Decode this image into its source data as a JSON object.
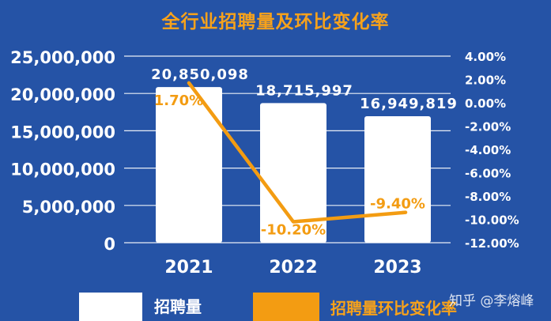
{
  "title": "全行业招聘量及环比变化率",
  "chart_data": {
    "type": "bar+line",
    "categories": [
      "2021",
      "2022",
      "2023"
    ],
    "bar_series": {
      "name": "招聘量",
      "values": [
        20850098,
        18715997,
        16949819
      ],
      "labels": [
        "20,850,098",
        "18,715,997",
        "16,949,819"
      ]
    },
    "line_series": {
      "name": "招聘量环比变化率",
      "values": [
        1.7,
        -10.2,
        -9.4
      ],
      "labels": [
        "1.70%",
        "-10.20%",
        "-9.40%"
      ]
    },
    "left_axis": {
      "ylim": [
        0,
        25000000
      ],
      "ticks": [
        0,
        5000000,
        10000000,
        15000000,
        20000000,
        25000000
      ],
      "tick_labels": [
        "0",
        "5,000,000",
        "10,000,000",
        "15,000,000",
        "20,000,000",
        "25,000,000"
      ]
    },
    "right_axis": {
      "ylim": [
        -12,
        4
      ],
      "ticks": [
        4,
        2,
        0,
        -2,
        -4,
        -6,
        -8,
        -10,
        -12
      ],
      "tick_labels": [
        "4.00%",
        "2.00%",
        "0.00%",
        "-2.00%",
        "-4.00%",
        "-6.00%",
        "-8.00%",
        "-10.00%",
        "-12.00%"
      ]
    },
    "legend": [
      "招聘量",
      "招聘量环比变化率"
    ],
    "legend_position": "bottom",
    "grid": true
  },
  "colors": {
    "background": "#2553a6",
    "bars": "#ffffff",
    "line": "#f39c12",
    "title": "#f7a21b",
    "grid": "#ffffff"
  },
  "watermark": "知乎 @李熔峰"
}
